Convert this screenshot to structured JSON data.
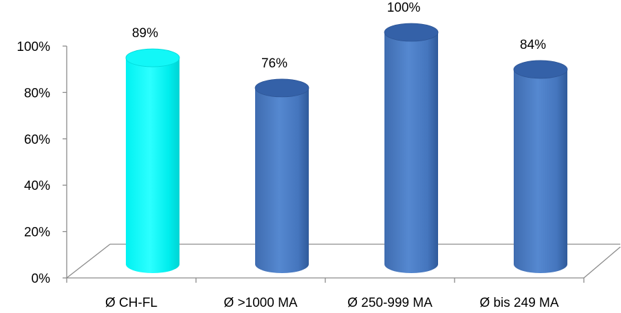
{
  "chart_data": {
    "type": "bar",
    "categories": [
      "Ø CH-FL",
      "Ø >1000 MA",
      "Ø 250-999 MA",
      "Ø bis 249 MA"
    ],
    "values": [
      89,
      76,
      100,
      84
    ],
    "data_labels": [
      "89%",
      "76%",
      "100%",
      "84%"
    ],
    "colors": [
      "#00F2F2",
      "#4A7BC2",
      "#4A7BC2",
      "#4A7BC2"
    ],
    "title": "",
    "xlabel": "",
    "ylabel": "",
    "ylim": [
      0,
      100
    ],
    "yticks": [
      0,
      20,
      40,
      60,
      80,
      100
    ],
    "ytick_labels": [
      "0%",
      "20%",
      "40%",
      "60%",
      "80%",
      "100%"
    ],
    "grid": false,
    "legend": "none",
    "style": "3d-cylinder"
  }
}
